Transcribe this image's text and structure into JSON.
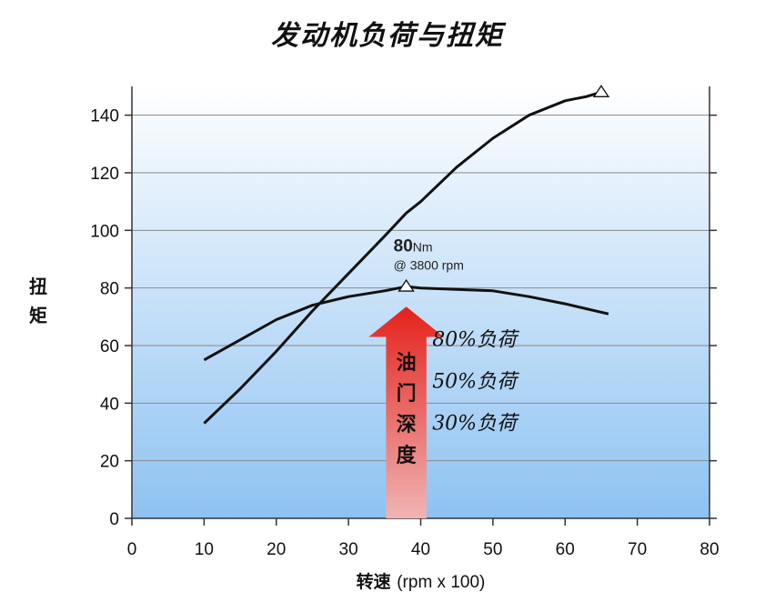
{
  "title": "发动机负荷与扭矩",
  "chart_data": {
    "type": "line",
    "title": "发动机负荷与扭矩",
    "ylabel": "扭矩",
    "xlabel": "转速 (rpm x 100)",
    "xlabel_main": "转速",
    "xlabel_unit": "(rpm x 100)",
    "xlim": [
      0,
      80
    ],
    "ylim": [
      0,
      150
    ],
    "xticks": [
      0,
      10,
      20,
      30,
      40,
      50,
      60,
      70,
      80
    ],
    "yticks": [
      0,
      20,
      40,
      60,
      80,
      100,
      120,
      140
    ],
    "grid": true,
    "series": [
      {
        "x": [
          10,
          15,
          20,
          25,
          30,
          35,
          38,
          40,
          45,
          50,
          55,
          60,
          63,
          65
        ],
        "values": [
          33,
          45,
          58,
          72,
          85,
          98,
          106,
          110,
          122,
          132,
          140,
          145,
          146.5,
          148
        ],
        "peak_marker": [
          65,
          148
        ]
      },
      {
        "x": [
          10,
          15,
          20,
          25,
          30,
          35,
          38,
          40,
          45,
          50,
          55,
          60,
          66
        ],
        "values": [
          55,
          62,
          69,
          74,
          77,
          79,
          80.5,
          80,
          79.5,
          79,
          77,
          74.5,
          71
        ],
        "peak_marker": [
          38,
          80.5
        ]
      }
    ],
    "annotations": [
      {
        "text_big": "80",
        "text_unit": "Nm",
        "text_sub": "@ 3800 rpm",
        "x": 38,
        "y": 80
      }
    ],
    "arrow": {
      "label_chars": [
        "油",
        "门",
        "深",
        "度"
      ],
      "color_top": "#e4221b",
      "color_bottom": "#f0b4b4"
    },
    "load_labels": [
      "80%负荷",
      "50%负荷",
      "30%负荷"
    ]
  },
  "colors": {
    "bg_top": "#ffffff",
    "bg_bottom": "#8ec2f2",
    "line": "#111111",
    "grid": "#8a8a8a"
  }
}
